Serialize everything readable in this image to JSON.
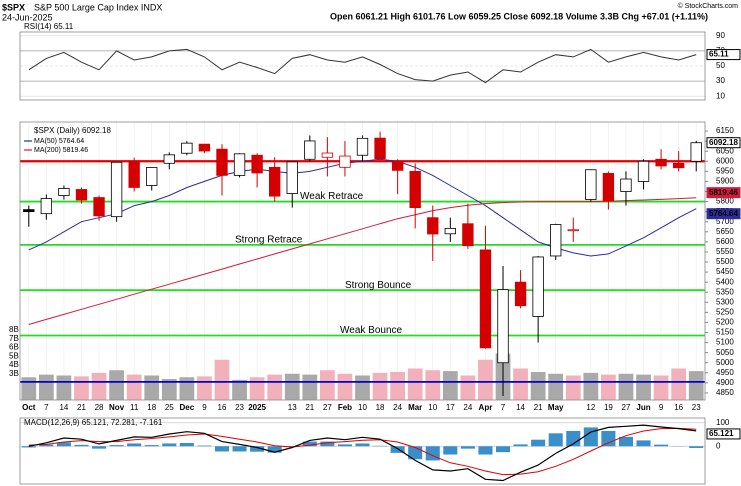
{
  "header": {
    "symbol": "$SPX",
    "name": "S&P 500 Large Cap Index INDX",
    "date": "24-Jun-2025",
    "quote": "Open 6061.21 High 6101.76 Low 6059.25 Close 6092.18 Volume 3.3B Chg +67.01 (+1.11%)",
    "credit": "© StockCharts.com"
  },
  "chart_data": [
    {
      "type": "line",
      "title": "RSI(14) 65.11",
      "series": [
        {
          "color": "#333333",
          "values": [
            45,
            60,
            68,
            55,
            45,
            70,
            58,
            62,
            70,
            72,
            62,
            45,
            55,
            48,
            40,
            60,
            65,
            58,
            55,
            62,
            52,
            40,
            32,
            30,
            38,
            42,
            28,
            45,
            42,
            55,
            65,
            62,
            72,
            55,
            62,
            68,
            62,
            58,
            65.11
          ]
        }
      ],
      "ylim": [
        5,
        95
      ],
      "yticks": [
        90,
        70,
        50,
        30,
        10
      ],
      "grid": true
    },
    {
      "type": "candlestick",
      "title": "$SPX (Daily) 6092.18",
      "categories": [
        "Oct",
        "7",
        "14",
        "21",
        "28",
        "Nov",
        "11",
        "18",
        "25",
        "Dec",
        "9",
        "16",
        "23",
        "2025",
        null,
        "13",
        "21",
        "27",
        "Feb",
        "10",
        "18",
        "24",
        "Mar",
        "10",
        "17",
        "24",
        "Apr",
        "7",
        "14",
        "21",
        "May",
        null,
        "12",
        "19",
        "27",
        "Jun",
        "9",
        "16",
        "23"
      ],
      "open": [
        5760,
        5740,
        5830,
        5860,
        5820,
        5725,
        6000,
        5880,
        5990,
        6040,
        6085,
        6060,
        5930,
        6030,
        5970,
        5840,
        6010,
        6020,
        5970,
        6030,
        6115,
        6000,
        5950,
        5720,
        5640,
        5690,
        5560,
        5000,
        5400,
        5230,
        5530,
        5660,
        5810,
        5940,
        5850,
        5900,
        6010,
        5990,
        6000
      ],
      "high": [
        5780,
        5835,
        5880,
        5870,
        5830,
        5995,
        6018,
        5970,
        6044,
        6100,
        6085,
        6085,
        6040,
        6040,
        6020,
        6000,
        6128,
        6120,
        6100,
        6128,
        6147,
        6010,
        5990,
        5780,
        5720,
        5790,
        5680,
        5480,
        5460,
        5530,
        5690,
        5720,
        5960,
        5950,
        5950,
        6010,
        6060,
        6050,
        6101.76
      ],
      "low": [
        5675,
        5710,
        5810,
        5790,
        5705,
        5700,
        5850,
        5855,
        5960,
        6030,
        6040,
        5830,
        5920,
        5870,
        5800,
        5770,
        6000,
        5925,
        5925,
        6000,
        6000,
        5837,
        5667,
        5505,
        5600,
        5565,
        5070,
        4835,
        5270,
        5100,
        5510,
        5600,
        5800,
        5760,
        5780,
        5860,
        5960,
        5950,
        5950
      ],
      "close": [
        5750,
        5815,
        5865,
        5808,
        5729,
        5995,
        5870,
        5969,
        6032,
        6090,
        6051,
        5930,
        6037,
        5942,
        5827,
        5997,
        6101,
        6041,
        6026,
        6114,
        6013,
        5955,
        5770,
        5639,
        5667,
        5581,
        5074,
        5363,
        5283,
        5525,
        5686,
        5660,
        5958,
        5803,
        5912,
        6000,
        5977,
        5968,
        6092.18
      ],
      "up_color": "#000000",
      "down_color": "#d40000",
      "series": [
        {
          "name": "MA(50) 5764.64",
          "color": "#2c2c9c",
          "values": [
            5560,
            5600,
            5650,
            5700,
            5720,
            5740,
            5780,
            5800,
            5830,
            5870,
            5900,
            5930,
            5950,
            5960,
            5950,
            5940,
            5950,
            5970,
            5990,
            6000,
            6010,
            6000,
            5970,
            5930,
            5880,
            5830,
            5780,
            5720,
            5660,
            5600,
            5570,
            5545,
            5530,
            5540,
            5580,
            5620,
            5670,
            5720,
            5764.64
          ]
        },
        {
          "name": "MA(200) 5819.46",
          "color": "#d41a3a",
          "values": [
            5190,
            5215,
            5240,
            5265,
            5290,
            5315,
            5340,
            5365,
            5390,
            5415,
            5440,
            5465,
            5490,
            5515,
            5540,
            5565,
            5590,
            5615,
            5640,
            5665,
            5690,
            5715,
            5735,
            5755,
            5770,
            5782,
            5790,
            5795,
            5798,
            5800,
            5800,
            5800,
            5800,
            5802,
            5805,
            5808,
            5811,
            5815,
            5819.46
          ]
        }
      ],
      "levels": [
        {
          "value": 6000,
          "color": "#e00000"
        },
        {
          "value": 5800,
          "color": "#22dd22",
          "label": "Weak Retrace"
        },
        {
          "value": 5585,
          "color": "#22dd22",
          "label": "Strong Retrace"
        },
        {
          "value": 5360,
          "color": "#22dd22",
          "label": "Strong Bounce"
        },
        {
          "value": 5135,
          "color": "#22dd22",
          "label": "Weak Bounce"
        },
        {
          "value": 4905,
          "color": "#0000cc"
        }
      ],
      "ylim": [
        4815,
        6195
      ],
      "yticks": [
        4850,
        4900,
        4950,
        5000,
        5050,
        5100,
        5150,
        5200,
        5250,
        5300,
        5350,
        5400,
        5450,
        5500,
        5550,
        5600,
        5650,
        5700,
        5750,
        5800,
        5850,
        5900,
        5950,
        6000,
        6050,
        6100,
        6150
      ],
      "volume": {
        "values": [
          2.6,
          2.9,
          2.8,
          2.7,
          3.1,
          3.4,
          2.9,
          2.8,
          2.4,
          2.6,
          2.7,
          4.6,
          2.3,
          2.6,
          2.9,
          3.0,
          2.9,
          3.4,
          3.0,
          2.8,
          3.1,
          3.2,
          3.6,
          3.4,
          3.3,
          2.8,
          4.6,
          5.3,
          3.6,
          3.2,
          3.0,
          2.8,
          3.1,
          2.9,
          3.0,
          2.9,
          2.8,
          3.6,
          3.3
        ],
        "up_color": "#a9a9a9",
        "down_color": "#f2b0bb",
        "ylim": [
          0,
          8
        ],
        "yticks": [
          {
            "value": 3,
            "label": "3B"
          },
          {
            "value": 4,
            "label": "4B"
          },
          {
            "value": 5,
            "label": "5B"
          },
          {
            "value": 6,
            "label": "6B"
          },
          {
            "value": 7,
            "label": "7B"
          },
          {
            "value": 8,
            "label": "8B"
          }
        ]
      }
    },
    {
      "type": "macd",
      "title": "MACD(12,26,9) 65.121, 72.281, -7.161",
      "macd": {
        "color": "#000000",
        "values": [
          0,
          15,
          35,
          30,
          10,
          25,
          40,
          38,
          52,
          62,
          55,
          20,
          8,
          -5,
          -25,
          -5,
          25,
          35,
          28,
          38,
          30,
          -10,
          -60,
          -100,
          -105,
          -95,
          -140,
          -145,
          -110,
          -80,
          -30,
          10,
          60,
          80,
          85,
          90,
          82,
          75,
          65.121
        ]
      },
      "signal": {
        "color": "#e00000",
        "values": [
          5,
          8,
          18,
          24,
          20,
          20,
          28,
          33,
          40,
          48,
          52,
          42,
          30,
          18,
          2,
          -3,
          5,
          15,
          20,
          26,
          28,
          18,
          -5,
          -40,
          -70,
          -85,
          -105,
          -120,
          -118,
          -108,
          -85,
          -55,
          -20,
          15,
          45,
          65,
          75,
          76,
          72.281
        ]
      },
      "histogram": {
        "color": "#3a8fc8",
        "values": [
          -5,
          7,
          17,
          6,
          -10,
          5,
          12,
          5,
          12,
          14,
          3,
          -22,
          -22,
          -23,
          -27,
          -2,
          20,
          20,
          8,
          12,
          2,
          -28,
          -55,
          -60,
          -35,
          -10,
          -35,
          -25,
          8,
          28,
          55,
          65,
          80,
          65,
          40,
          25,
          7,
          -1,
          -7.161
        ]
      },
      "ylim": [
        -160,
        120
      ],
      "yticks": [
        100,
        0
      ]
    }
  ]
}
